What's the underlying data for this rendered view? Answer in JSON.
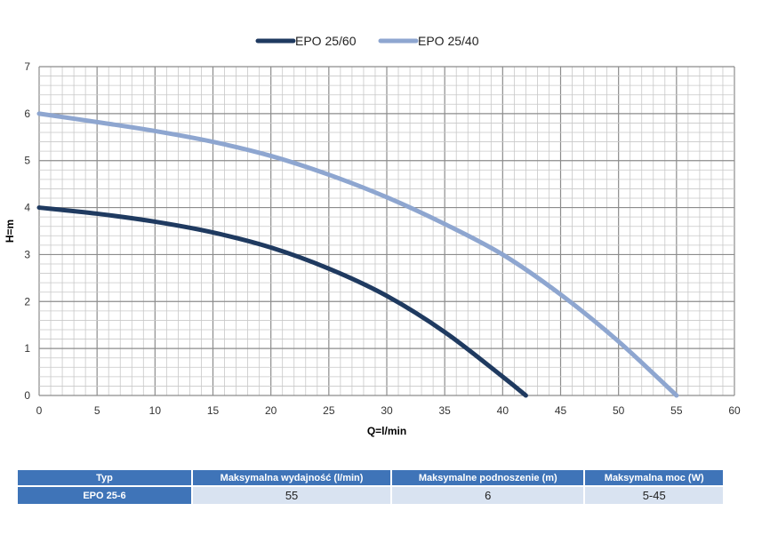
{
  "chart_data": {
    "type": "line",
    "title": "",
    "xlabel": "Q=l/min",
    "ylabel": "H=m",
    "xlim": [
      0,
      60
    ],
    "ylim": [
      0,
      7
    ],
    "xticks": [
      0,
      5,
      10,
      15,
      20,
      25,
      30,
      35,
      40,
      45,
      50,
      55,
      60
    ],
    "yticks": [
      0,
      1,
      2,
      3,
      4,
      5,
      6,
      7
    ],
    "grid": true,
    "legend": "top-center",
    "series": [
      {
        "name": "EPO 25/60",
        "color": "#1f3a60",
        "x": [
          0,
          5,
          10,
          15,
          20,
          25,
          30,
          35,
          40,
          42
        ],
        "y": [
          4,
          3.87,
          3.7,
          3.47,
          3.15,
          2.7,
          2.12,
          1.35,
          0.4,
          0
        ]
      },
      {
        "name": "EPO 25/40",
        "color": "#8ea6d0",
        "x": [
          0,
          5,
          10,
          15,
          20,
          25,
          30,
          35,
          40,
          45,
          50,
          55
        ],
        "y": [
          6,
          5.82,
          5.63,
          5.4,
          5.1,
          4.7,
          4.22,
          3.65,
          3.0,
          2.15,
          1.15,
          0
        ]
      }
    ]
  },
  "table": {
    "headers": [
      "Typ",
      "Maksymalna wydajność (l/min)",
      "Maksymalne podnoszenie (m)",
      "Maksymalna moc (W)"
    ],
    "row": [
      "EPO 25-6",
      "55",
      "6",
      "5-45"
    ]
  }
}
